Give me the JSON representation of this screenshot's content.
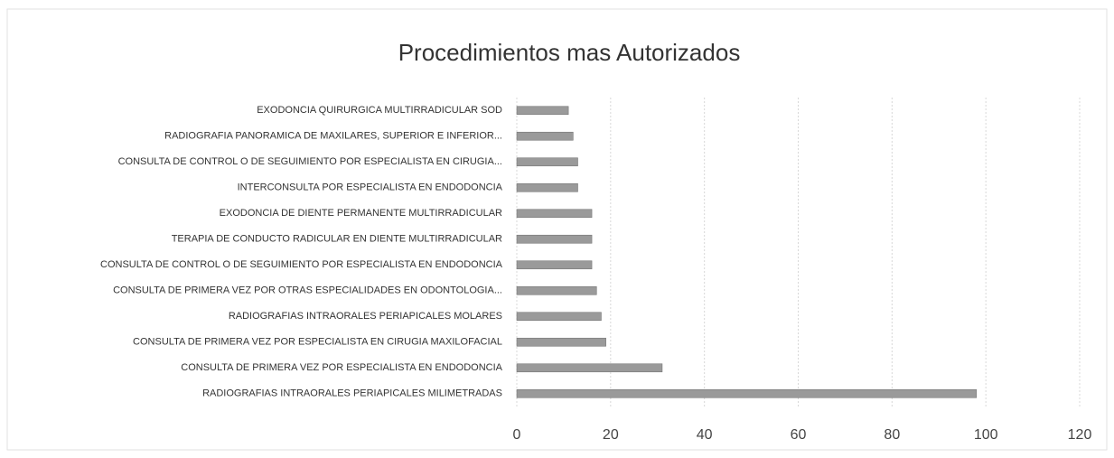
{
  "chart_data": {
    "type": "barh",
    "title": "Procedimientos mas Autorizados",
    "categories": [
      "EXODONCIA QUIRURGICA MULTIRRADICULAR SOD",
      "RADIOGRAFIA PANORAMICA DE MAXILARES, SUPERIOR E INFERIOR...",
      "CONSULTA DE CONTROL O DE SEGUIMIENTO POR ESPECIALISTA EN CIRUGIA...",
      "INTERCONSULTA POR ESPECIALISTA EN ENDODONCIA",
      "EXODONCIA DE DIENTE PERMANENTE MULTIRRADICULAR",
      "TERAPIA DE CONDUCTO RADICULAR EN DIENTE MULTIRRADICULAR",
      "CONSULTA DE CONTROL O DE SEGUIMIENTO POR ESPECIALISTA EN ENDODONCIA",
      "CONSULTA DE PRIMERA VEZ POR OTRAS ESPECIALIDADES EN ODONTOLOGIA...",
      "RADIOGRAFIAS INTRAORALES PERIAPICALES MOLARES",
      "CONSULTA DE PRIMERA VEZ POR ESPECIALISTA EN CIRUGIA MAXILOFACIAL",
      "CONSULTA DE PRIMERA VEZ POR ESPECIALISTA EN ENDODONCIA",
      "RADIOGRAFIAS INTRAORALES PERIAPICALES MILIMETRADAS"
    ],
    "values": [
      11,
      12,
      13,
      13,
      16,
      16,
      16,
      17,
      18,
      19,
      31,
      98
    ],
    "color": "#9a9a9a",
    "xlim": [
      0,
      120
    ],
    "xticks": [
      0,
      20,
      40,
      60,
      80,
      100,
      120
    ],
    "grid": true
  }
}
